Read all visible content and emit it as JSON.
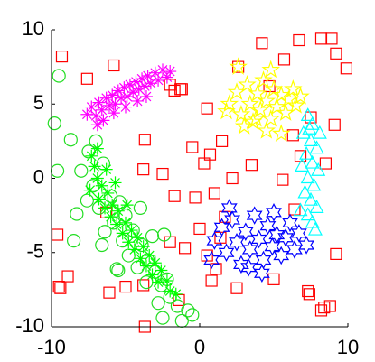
{
  "chart_data": {
    "type": "scatter",
    "xlim": [
      -10,
      10
    ],
    "ylim": [
      -10,
      10
    ],
    "xticks": [
      -10,
      0,
      10
    ],
    "yticks": [
      -10,
      -5,
      0,
      5,
      10
    ],
    "series": [
      {
        "marker": "square",
        "color": "#ff0000",
        "x": [
          -9.3,
          -7.6,
          -5.8,
          4.2,
          6.7,
          8.2,
          8.9,
          9.2,
          9.9,
          5.7,
          4.7,
          2.6,
          -1.2,
          -1.7,
          0.5,
          0.7,
          -0.5,
          -3.7,
          -3.8,
          -2.5,
          -1.7,
          -0.3,
          1.0,
          1.7,
          0.0,
          1.4,
          3.5,
          5.6,
          6.8,
          8.5,
          9.1,
          7.5,
          6.3,
          1.5,
          -6.3,
          -9.6,
          -8.9,
          -9.4,
          -9.5,
          -6.1,
          -5.0,
          -3.8,
          -2.0,
          -1.0,
          0.5,
          1.1,
          0.8,
          2.5,
          5.0,
          7.3,
          7.4,
          8.4,
          8.2,
          8.8,
          9.2,
          -3.7,
          -1.4,
          0.3,
          2.2,
          -2.0,
          -1.3,
          6.4
        ],
        "y": [
          8.2,
          6.7,
          7.6,
          9.1,
          9.3,
          9.4,
          9.4,
          8.4,
          7.4,
          8.0,
          6.2,
          7.5,
          6.0,
          5.9,
          4.7,
          1.6,
          2.1,
          2.6,
          0.6,
          0.3,
          -1.2,
          -1.3,
          -1.0,
          -2.6,
          -3.4,
          -4.0,
          0.9,
          -0.1,
          1.5,
          1.0,
          3.6,
          4.1,
          2.9,
          2.5,
          -2.3,
          -3.8,
          -6.6,
          -7.4,
          -7.3,
          -7.7,
          -7.3,
          -7.2,
          -4.3,
          -4.7,
          -5.2,
          -6.1,
          -6.9,
          -7.4,
          -6.8,
          -7.6,
          -7.8,
          -8.7,
          -8.9,
          -8.6,
          -5.1,
          -10.0,
          -8.2,
          1.0,
          0.0,
          6.3,
          6.0,
          -2.1
        ]
      },
      {
        "marker": "asterisk",
        "color": "#ff00ff",
        "x": [
          -7.6,
          -7.3,
          -7.0,
          -6.8,
          -6.6,
          -6.3,
          -6.1,
          -5.9,
          -5.7,
          -5.5,
          -5.3,
          -5.1,
          -4.9,
          -4.7,
          -4.5,
          -4.3,
          -4.1,
          -3.9,
          -3.7,
          -3.5,
          -3.3,
          -3.0,
          -2.8,
          -2.5,
          -2.2,
          -2.0,
          -6.9,
          -6.5,
          -5.8,
          -5.0,
          -4.2,
          -3.6
        ],
        "y": [
          4.3,
          4.8,
          4.2,
          5.1,
          4.6,
          5.4,
          4.9,
          5.6,
          5.0,
          5.9,
          5.4,
          6.1,
          5.5,
          6.3,
          5.8,
          6.5,
          6.0,
          6.7,
          6.2,
          6.9,
          6.4,
          7.1,
          6.6,
          7.3,
          6.8,
          7.2,
          3.6,
          3.9,
          4.4,
          4.8,
          5.2,
          5.5
        ]
      },
      {
        "marker": "circle",
        "color": "#22dd22",
        "x": [
          -9.5,
          -9.8,
          -9.6,
          -8.7,
          -8.3,
          -7.5,
          -7.0,
          -8.0,
          -7.2,
          -6.5,
          -7.6,
          -6.8,
          -6.0,
          -5.8,
          -6.4,
          -5.0,
          -5.2,
          -4.5,
          -4.8,
          -3.9,
          -4.2,
          -3.5,
          -3.0,
          -3.6,
          -2.6,
          -2.2,
          -2.0,
          -1.5,
          -0.8,
          -2.5,
          -1.2,
          -0.5,
          -5.5,
          -5.6,
          -2.4,
          -3.2,
          -4.0,
          -8.5,
          -5.4,
          -6.6,
          -2.8
        ],
        "y": [
          6.9,
          3.7,
          0.5,
          2.6,
          -2.4,
          1.8,
          2.5,
          0.5,
          -0.5,
          1.0,
          -1.5,
          -2.0,
          -1.2,
          -3.0,
          -3.6,
          -2.5,
          -4.2,
          -3.5,
          -5.2,
          -4.5,
          -6.0,
          -5.5,
          -6.3,
          -7.0,
          -7.2,
          -6.8,
          -8.0,
          -8.6,
          -8.9,
          -9.4,
          -9.6,
          -9.2,
          -6.2,
          -6.1,
          -3.8,
          -3.9,
          -2.0,
          -4.2,
          -1.6,
          -4.5,
          -8.4
        ]
      },
      {
        "marker": "asterisk",
        "color": "#00ff00",
        "x": [
          -7.3,
          -7.1,
          -6.9,
          -7.4,
          -6.6,
          -6.8,
          -6.2,
          -6.4,
          -5.9,
          -6.0,
          -5.5,
          -5.6,
          -5.0,
          -5.2,
          -4.6,
          -4.8,
          -4.2,
          -4.4,
          -3.8,
          -4.0,
          -3.4,
          -3.6,
          -3.0,
          -3.2,
          -2.6,
          -2.8,
          -2.2,
          -2.0,
          -1.6,
          -6.9,
          -6.3,
          -5.7,
          -4.9
        ],
        "y": [
          1.5,
          0.8,
          0.0,
          -0.8,
          -0.5,
          -1.4,
          -1.0,
          -2.0,
          -1.8,
          -2.6,
          -2.2,
          -3.1,
          -3.0,
          -3.7,
          -3.5,
          -4.3,
          -4.0,
          -4.8,
          -4.6,
          -5.4,
          -5.2,
          -5.9,
          -5.7,
          -6.5,
          -6.2,
          -7.0,
          -6.9,
          -7.6,
          -7.8,
          2.0,
          0.6,
          -0.3,
          -1.8
        ]
      },
      {
        "marker": "pentagram",
        "color": "#ffff00",
        "x": [
          2.0,
          2.5,
          2.8,
          3.2,
          3.4,
          3.6,
          3.9,
          4.1,
          4.3,
          4.5,
          4.8,
          5.0,
          5.2,
          5.5,
          5.8,
          6.0,
          6.3,
          6.5,
          3.0,
          4.5,
          2.6,
          4.8,
          5.5,
          1.8,
          6.8,
          3.8
        ],
        "y": [
          5.0,
          5.8,
          4.3,
          6.3,
          5.0,
          3.8,
          5.7,
          4.6,
          6.6,
          5.2,
          4.0,
          6.0,
          4.8,
          5.6,
          4.4,
          5.3,
          6.0,
          4.9,
          3.5,
          3.2,
          7.5,
          7.3,
          3.0,
          4.5,
          5.5,
          4.0
        ]
      },
      {
        "marker": "triangle",
        "color": "#00ffff",
        "x": [
          7.3,
          7.6,
          7.0,
          7.5,
          7.9,
          7.2,
          7.6,
          8.0,
          7.3,
          7.7,
          7.1,
          7.5,
          7.9,
          7.3,
          7.6,
          6.8,
          8.1,
          6.9,
          7.8,
          7.4
        ],
        "y": [
          4.2,
          3.6,
          3.0,
          2.5,
          2.0,
          1.6,
          1.0,
          0.5,
          0.0,
          -0.5,
          -1.0,
          -1.5,
          -2.0,
          -2.5,
          -3.0,
          -2.2,
          3.0,
          0.8,
          -3.5,
          3.3
        ]
      },
      {
        "marker": "hexagram",
        "color": "#0000ff",
        "x": [
          1.0,
          1.5,
          1.8,
          2.2,
          2.5,
          2.8,
          3.1,
          3.4,
          3.7,
          4.0,
          4.3,
          4.6,
          4.9,
          5.2,
          5.5,
          5.8,
          6.1,
          6.4,
          6.7,
          7.2,
          2.0,
          4.2,
          5.0,
          0.8,
          3.3
        ],
        "y": [
          -4.2,
          -3.3,
          -5.0,
          -2.8,
          -4.3,
          -5.8,
          -3.6,
          -4.8,
          -2.5,
          -4.1,
          -5.5,
          -3.2,
          -4.6,
          -3.8,
          -5.2,
          -4.0,
          -3.0,
          -4.8,
          -3.7,
          -4.5,
          -2.0,
          -6.4,
          -2.3,
          -5.5,
          -6.0
        ]
      }
    ]
  }
}
